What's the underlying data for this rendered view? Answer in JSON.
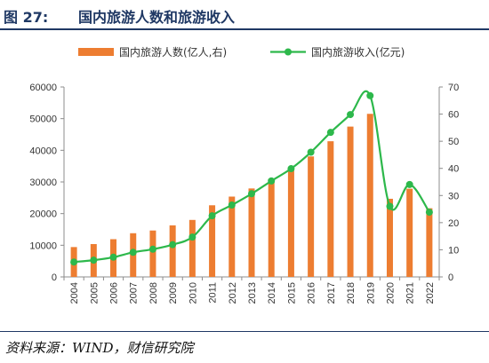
{
  "header": {
    "figure_number": "图 27:",
    "title": "国内旅游人数和旅游收入"
  },
  "source_note": "资料来源：WIND，财信研究院",
  "colors": {
    "bar": "#ED7D31",
    "line": "#2DB84B",
    "header_text": "#1f3864",
    "axis": "#8c8c8c"
  },
  "chart_data": {
    "type": "bar",
    "title": "国内旅游人数和旅游收入",
    "categories": [
      "2004",
      "2005",
      "2006",
      "2007",
      "2008",
      "2009",
      "2010",
      "2011",
      "2012",
      "2013",
      "2014",
      "2015",
      "2016",
      "2017",
      "2018",
      "2019",
      "2020",
      "2021",
      "2022"
    ],
    "series": [
      {
        "name": "国内旅游人数(亿人,右)",
        "type": "bar",
        "axis": "right",
        "values": [
          11.0,
          12.1,
          13.9,
          16.1,
          17.1,
          19.0,
          21.0,
          26.4,
          29.6,
          32.6,
          36.1,
          40.0,
          44.4,
          50.0,
          55.4,
          60.1,
          28.8,
          32.5,
          25.3
        ]
      },
      {
        "name": "国内旅游收入(亿元)",
        "type": "line",
        "axis": "left",
        "values": [
          4711,
          5286,
          6230,
          7771,
          8749,
          10184,
          12580,
          19305,
          22706,
          26276,
          30312,
          34195,
          39390,
          45661,
          51278,
          57251,
          22286,
          29191,
          20444
        ]
      }
    ],
    "y_left": {
      "min": 0,
      "max": 60000,
      "ticks": [
        "0",
        "10000",
        "20000",
        "30000",
        "40000",
        "50000",
        "60000"
      ]
    },
    "y_right": {
      "min": 0,
      "max": 70,
      "ticks": [
        "0",
        "10",
        "20",
        "30",
        "40",
        "50",
        "60",
        "70"
      ]
    },
    "legend": {
      "position": "top-center"
    },
    "grid": false
  }
}
